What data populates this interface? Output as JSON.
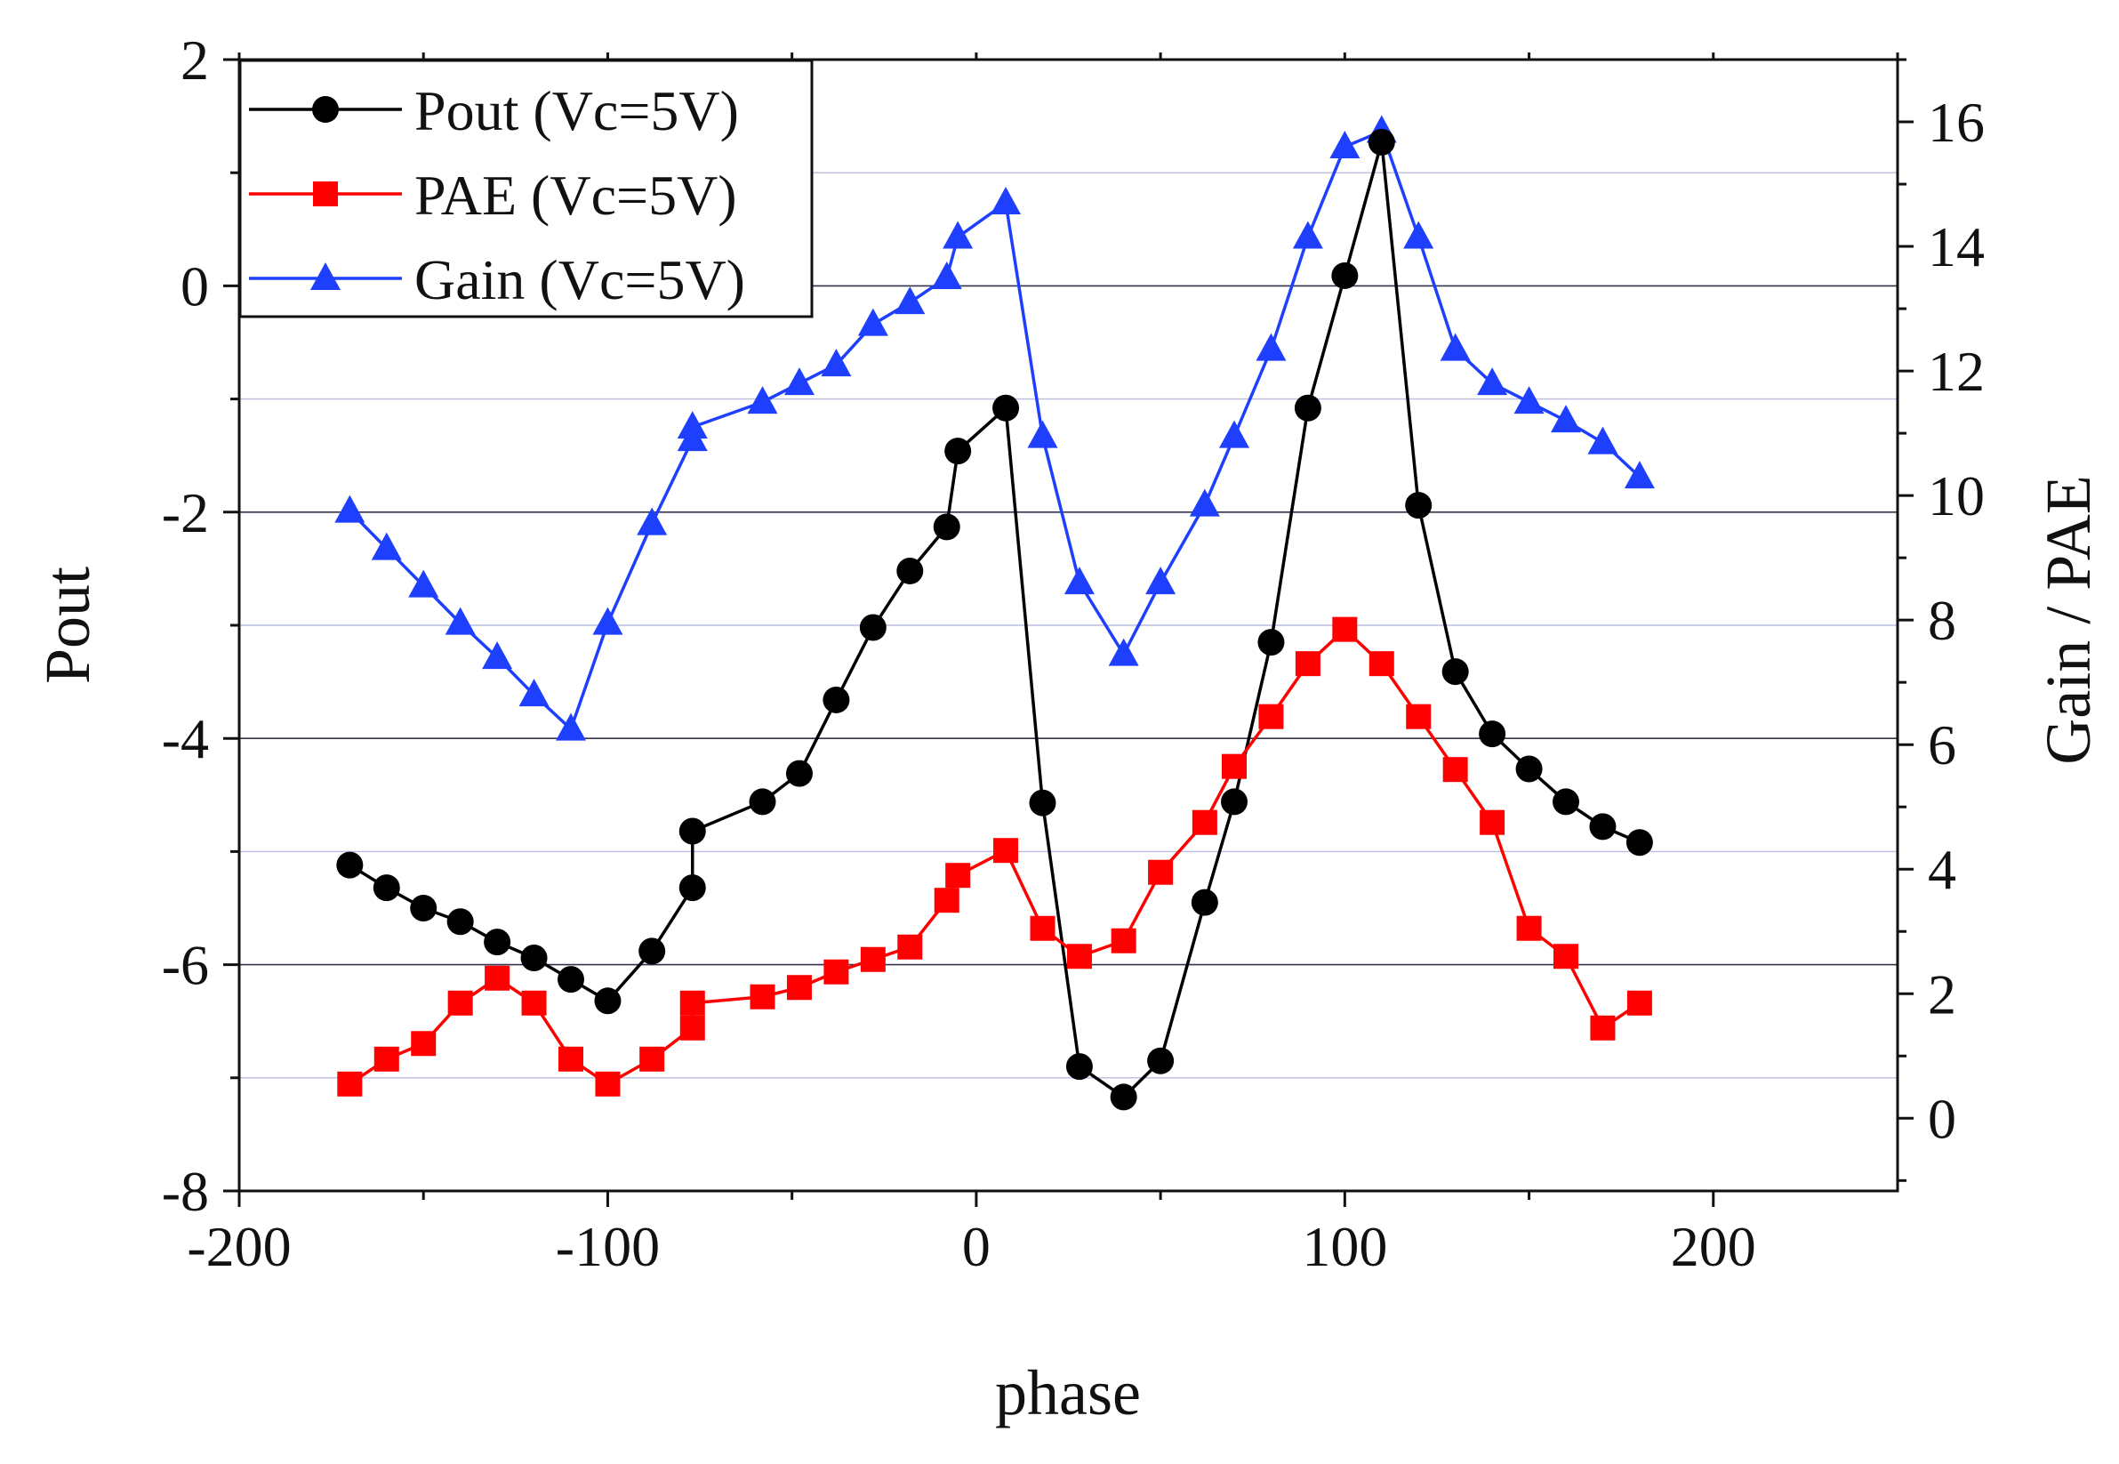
{
  "chart_data": {
    "type": "line",
    "xlabel": "phase",
    "ylabel": "Pout",
    "y2label": "Gain / PAE",
    "xlim": [
      -200,
      250
    ],
    "ylim": [
      -8,
      2
    ],
    "y2lim": [
      -1.167,
      17
    ],
    "xticks": [
      -200,
      -100,
      0,
      100,
      200
    ],
    "xtick_labels": [
      "-200",
      "-100",
      "0",
      "100",
      "200"
    ],
    "yticks": [
      -8,
      -6,
      -4,
      -2,
      0,
      2
    ],
    "ytick_labels": [
      "-8",
      "-6",
      "-4",
      "-2",
      "0",
      "2"
    ],
    "y2ticks": [
      0,
      2,
      4,
      6,
      8,
      10,
      12,
      14,
      16
    ],
    "y2tick_labels": [
      "0",
      "2",
      "4",
      "6",
      "8",
      "10",
      "12",
      "14",
      "16"
    ],
    "legend_position": "top-left",
    "colors": {
      "pout": "#000000",
      "pae": "#ff0000",
      "gain": "#1f3fff"
    },
    "series": [
      {
        "name": "Pout (Vc=5V)",
        "axis": "left",
        "marker": "circle",
        "color": "#000000",
        "x": [
          -170,
          -160,
          -150,
          -140,
          -130,
          -120,
          -110,
          -100,
          -88,
          -77,
          -77,
          -58,
          -48,
          -38,
          -28,
          -18,
          -8,
          -5,
          8,
          18,
          28,
          40,
          50,
          62,
          70,
          80,
          90,
          100,
          110,
          120,
          130,
          140,
          150,
          160,
          170,
          180
        ],
        "values": [
          -5.12,
          -5.32,
          -5.5,
          -5.62,
          -5.8,
          -5.94,
          -6.13,
          -6.32,
          -5.88,
          -5.32,
          -4.82,
          -4.56,
          -4.31,
          -3.66,
          -3.02,
          -2.52,
          -2.13,
          -1.46,
          -1.08,
          -4.57,
          -6.9,
          -7.17,
          -6.85,
          -5.45,
          -4.56,
          -3.15,
          -1.08,
          0.09,
          1.27,
          -1.94,
          -3.41,
          -3.96,
          -4.27,
          -4.56,
          -4.78,
          -4.92
        ]
      },
      {
        "name": "PAE (Vc=5V)",
        "axis": "right",
        "marker": "square",
        "color": "#ff0000",
        "x": [
          -170,
          -160,
          -150,
          -140,
          -130,
          -120,
          -110,
          -100,
          -88,
          -77,
          -77,
          -58,
          -48,
          -38,
          -28,
          -18,
          -8,
          -5,
          8,
          18,
          28,
          40,
          50,
          62,
          70,
          80,
          90,
          100,
          110,
          120,
          130,
          140,
          150,
          160,
          170,
          180
        ],
        "values": [
          0.55,
          0.95,
          1.2,
          1.85,
          2.25,
          1.85,
          0.95,
          0.55,
          0.95,
          1.45,
          1.85,
          1.95,
          2.1,
          2.35,
          2.55,
          2.75,
          3.5,
          3.9,
          4.3,
          3.05,
          2.6,
          2.85,
          3.95,
          4.75,
          5.65,
          6.45,
          7.3,
          7.85,
          7.3,
          6.45,
          5.6,
          4.75,
          3.05,
          2.6,
          1.45,
          1.85
        ]
      },
      {
        "name": "Gain (Vc=5V)",
        "axis": "right",
        "marker": "triangle",
        "color": "#1f3fff",
        "x": [
          -170,
          -160,
          -150,
          -140,
          -130,
          -120,
          -110,
          -100,
          -88,
          -77,
          -77,
          -58,
          -48,
          -38,
          -28,
          -18,
          -8,
          -5,
          8,
          18,
          28,
          40,
          50,
          62,
          70,
          80,
          90,
          100,
          110,
          120,
          130,
          140,
          150,
          160,
          170,
          180
        ],
        "values": [
          9.75,
          9.15,
          8.55,
          7.95,
          7.4,
          6.8,
          6.25,
          7.95,
          9.55,
          10.9,
          11.1,
          11.5,
          11.8,
          12.1,
          12.75,
          13.1,
          13.5,
          14.15,
          14.7,
          10.95,
          8.6,
          7.45,
          8.6,
          9.85,
          10.95,
          12.35,
          14.15,
          15.6,
          15.85,
          14.15,
          12.35,
          11.8,
          11.5,
          11.2,
          10.85,
          10.3
        ]
      }
    ]
  }
}
